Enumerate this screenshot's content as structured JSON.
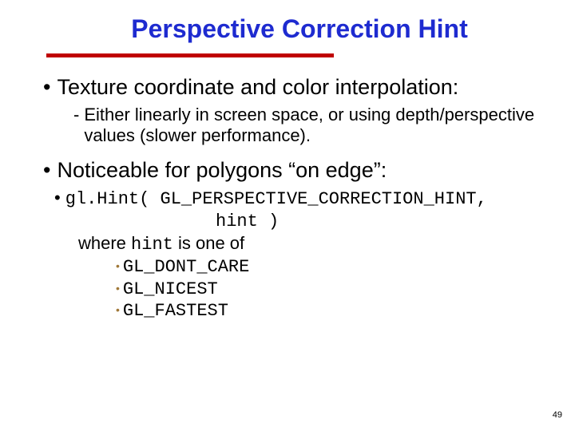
{
  "colors": {
    "title": "#1e2bd0",
    "rule": "#c00000",
    "enum_bullet": "#a07838",
    "text": "#000000",
    "background": "#ffffff"
  },
  "title": "Perspective Correction Hint",
  "bullets": {
    "b1": "Texture coordinate and color interpolation:",
    "b1_sub": "Either linearly in screen space, or using depth/perspective values (slower performance).",
    "b2": "Noticeable for polygons “on edge”:",
    "code_fn": "gl.Hint(",
    "code_arg1": " GL_PERSPECTIVE_CORRECTION_HINT,",
    "code_arg2": "hint )",
    "where_pre": "where ",
    "where_code": "hint",
    "where_post": " is one of",
    "enums": {
      "e1": "GL_DONT_CARE",
      "e2": "GL_NICEST",
      "e3": "GL_FASTEST"
    }
  },
  "page_number": "49",
  "typography": {
    "title_fontsize": 32,
    "body_fontsize": 27,
    "sub_fontsize": 22
  }
}
